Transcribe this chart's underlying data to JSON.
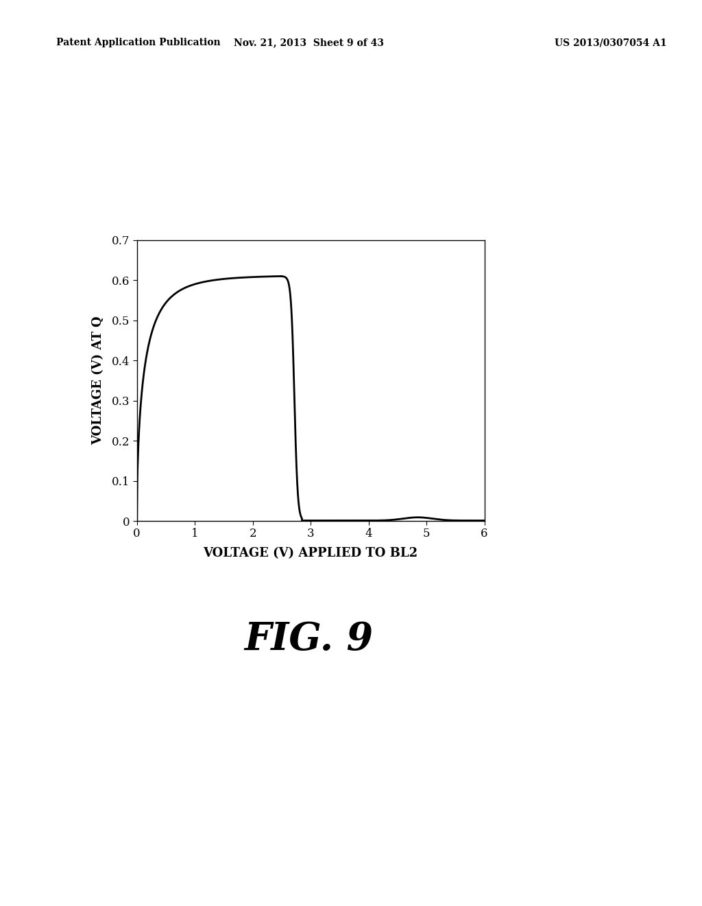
{
  "header_left": "Patent Application Publication",
  "header_mid": "Nov. 21, 2013  Sheet 9 of 43",
  "header_right": "US 2013/0307054 A1",
  "xlabel": "VOLTAGE (V) APPLIED TO BL2",
  "ylabel": "VOLTAGE (V) AT Q",
  "fig_label": "FIG. 9",
  "xlim": [
    0,
    6
  ],
  "ylim": [
    0,
    0.7
  ],
  "xticks": [
    0,
    1,
    2,
    3,
    4,
    5,
    6
  ],
  "yticks": [
    0,
    0.1,
    0.2,
    0.3,
    0.4,
    0.5,
    0.6,
    0.7
  ],
  "background_color": "#ffffff",
  "line_color": "#000000",
  "line_width": 2.0,
  "header_fontsize": 10,
  "tick_fontsize": 12,
  "label_fontsize": 13,
  "fig_label_fontsize": 40
}
